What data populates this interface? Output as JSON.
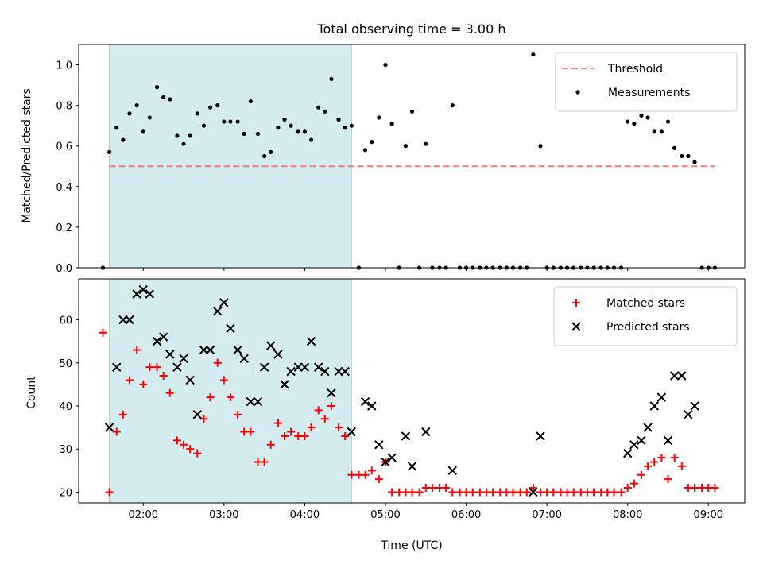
{
  "chart_data": [
    {
      "type": "scatter",
      "title": "Total observing time = 3.00 h",
      "ylabel": "Matched/Predicted stars",
      "xlabel": "",
      "ylim": [
        0,
        1.1
      ],
      "yticks": [
        "0.0",
        "0.2",
        "0.4",
        "0.6",
        "0.8",
        "1.0"
      ],
      "x_unit": "hours UTC",
      "xlim": [
        1.2,
        9.45
      ],
      "shaded_interval": [
        1.58,
        4.58
      ],
      "shade_color": "#d4ebf0",
      "legend_position": "top-right",
      "threshold": {
        "name": "Threshold",
        "y": 0.5,
        "x_start": 1.58,
        "x_end": 9.08,
        "color": "#f08080"
      },
      "series": [
        {
          "name": "Measurements",
          "color": "#000000",
          "points": [
            [
              1.5,
              0.0
            ],
            [
              1.58,
              0.57
            ],
            [
              1.67,
              0.69
            ],
            [
              1.75,
              0.63
            ],
            [
              1.83,
              0.76
            ],
            [
              1.92,
              0.8
            ],
            [
              2.0,
              0.67
            ],
            [
              2.08,
              0.74
            ],
            [
              2.17,
              0.89
            ],
            [
              2.25,
              0.84
            ],
            [
              2.33,
              0.83
            ],
            [
              2.42,
              0.65
            ],
            [
              2.5,
              0.61
            ],
            [
              2.58,
              0.65
            ],
            [
              2.67,
              0.76
            ],
            [
              2.75,
              0.7
            ],
            [
              2.83,
              0.79
            ],
            [
              2.92,
              0.8
            ],
            [
              3.0,
              0.72
            ],
            [
              3.08,
              0.72
            ],
            [
              3.17,
              0.72
            ],
            [
              3.25,
              0.66
            ],
            [
              3.33,
              0.82
            ],
            [
              3.42,
              0.66
            ],
            [
              3.5,
              0.55
            ],
            [
              3.58,
              0.57
            ],
            [
              3.67,
              0.69
            ],
            [
              3.75,
              0.73
            ],
            [
              3.83,
              0.7
            ],
            [
              3.92,
              0.67
            ],
            [
              4.0,
              0.67
            ],
            [
              4.08,
              0.63
            ],
            [
              4.17,
              0.79
            ],
            [
              4.25,
              0.77
            ],
            [
              4.33,
              0.93
            ],
            [
              4.42,
              0.73
            ],
            [
              4.5,
              0.69
            ],
            [
              4.58,
              0.7
            ],
            [
              4.67,
              0.0
            ],
            [
              4.75,
              0.58
            ],
            [
              4.83,
              0.62
            ],
            [
              4.92,
              0.74
            ],
            [
              5.0,
              1.0
            ],
            [
              5.08,
              0.71
            ],
            [
              5.17,
              0.0
            ],
            [
              5.25,
              0.6
            ],
            [
              5.33,
              0.77
            ],
            [
              5.42,
              0.0
            ],
            [
              5.5,
              0.61
            ],
            [
              5.58,
              0.0
            ],
            [
              5.67,
              0.0
            ],
            [
              5.75,
              0.0
            ],
            [
              5.83,
              0.8
            ],
            [
              5.92,
              0.0
            ],
            [
              6.0,
              0.0
            ],
            [
              6.08,
              0.0
            ],
            [
              6.17,
              0.0
            ],
            [
              6.25,
              0.0
            ],
            [
              6.33,
              0.0
            ],
            [
              6.42,
              0.0
            ],
            [
              6.5,
              0.0
            ],
            [
              6.58,
              0.0
            ],
            [
              6.67,
              0.0
            ],
            [
              6.75,
              0.0
            ],
            [
              6.83,
              1.05
            ],
            [
              6.92,
              0.6
            ],
            [
              7.0,
              0.0
            ],
            [
              7.08,
              0.0
            ],
            [
              7.17,
              0.0
            ],
            [
              7.25,
              0.0
            ],
            [
              7.33,
              0.0
            ],
            [
              7.42,
              0.0
            ],
            [
              7.5,
              0.0
            ],
            [
              7.58,
              0.0
            ],
            [
              7.67,
              0.0
            ],
            [
              7.75,
              0.0
            ],
            [
              7.83,
              0.0
            ],
            [
              7.92,
              0.0
            ],
            [
              8.0,
              0.72
            ],
            [
              8.08,
              0.71
            ],
            [
              8.17,
              0.75
            ],
            [
              8.25,
              0.74
            ],
            [
              8.33,
              0.67
            ],
            [
              8.42,
              0.67
            ],
            [
              8.5,
              0.72
            ],
            [
              8.58,
              0.59
            ],
            [
              8.67,
              0.55
            ],
            [
              8.75,
              0.55
            ],
            [
              8.83,
              0.52
            ],
            [
              8.92,
              0.0
            ],
            [
              9.0,
              0.0
            ],
            [
              9.08,
              0.0
            ]
          ]
        }
      ]
    },
    {
      "type": "scatter",
      "title": "",
      "xlabel": "Time (UTC)",
      "ylabel": "Count",
      "ylim": [
        17.5,
        69.5
      ],
      "yticks": [
        "20",
        "30",
        "40",
        "50",
        "60"
      ],
      "x_unit": "hours UTC",
      "xlim": [
        1.2,
        9.45
      ],
      "xticks": [
        "02:00",
        "03:00",
        "04:00",
        "05:00",
        "06:00",
        "07:00",
        "08:00",
        "09:00"
      ],
      "shaded_interval": [
        1.58,
        4.58
      ],
      "shade_color": "#d4ebf0",
      "legend_position": "top-right",
      "series": [
        {
          "name": "Matched stars",
          "color": "#ff0000",
          "marker": "plus",
          "points": [
            [
              1.5,
              57
            ],
            [
              1.58,
              20
            ],
            [
              1.67,
              34
            ],
            [
              1.75,
              38
            ],
            [
              1.83,
              46
            ],
            [
              1.92,
              53
            ],
            [
              2.0,
              45
            ],
            [
              2.08,
              49
            ],
            [
              2.17,
              49
            ],
            [
              2.25,
              47
            ],
            [
              2.33,
              43
            ],
            [
              2.42,
              32
            ],
            [
              2.5,
              31
            ],
            [
              2.58,
              30
            ],
            [
              2.67,
              29
            ],
            [
              2.75,
              37
            ],
            [
              2.83,
              42
            ],
            [
              2.92,
              50
            ],
            [
              3.0,
              46
            ],
            [
              3.08,
              42
            ],
            [
              3.17,
              38
            ],
            [
              3.25,
              34
            ],
            [
              3.33,
              34
            ],
            [
              3.42,
              27
            ],
            [
              3.5,
              27
            ],
            [
              3.58,
              31
            ],
            [
              3.67,
              36
            ],
            [
              3.75,
              33
            ],
            [
              3.83,
              34
            ],
            [
              3.92,
              33
            ],
            [
              4.0,
              33
            ],
            [
              4.08,
              35
            ],
            [
              4.17,
              39
            ],
            [
              4.25,
              37
            ],
            [
              4.33,
              40
            ],
            [
              4.42,
              35
            ],
            [
              4.5,
              33
            ],
            [
              4.58,
              24
            ],
            [
              4.67,
              24
            ],
            [
              4.75,
              24
            ],
            [
              4.83,
              25
            ],
            [
              4.92,
              23
            ],
            [
              5.0,
              27
            ],
            [
              5.08,
              20
            ],
            [
              5.17,
              20
            ],
            [
              5.25,
              20
            ],
            [
              5.33,
              20
            ],
            [
              5.42,
              20
            ],
            [
              5.5,
              21
            ],
            [
              5.58,
              21
            ],
            [
              5.67,
              21
            ],
            [
              5.75,
              21
            ],
            [
              5.83,
              20
            ],
            [
              5.92,
              20
            ],
            [
              6.0,
              20
            ],
            [
              6.08,
              20
            ],
            [
              6.17,
              20
            ],
            [
              6.25,
              20
            ],
            [
              6.33,
              20
            ],
            [
              6.42,
              20
            ],
            [
              6.5,
              20
            ],
            [
              6.58,
              20
            ],
            [
              6.67,
              20
            ],
            [
              6.75,
              20
            ],
            [
              6.83,
              21
            ],
            [
              6.92,
              20
            ],
            [
              7.0,
              20
            ],
            [
              7.08,
              20
            ],
            [
              7.17,
              20
            ],
            [
              7.25,
              20
            ],
            [
              7.33,
              20
            ],
            [
              7.42,
              20
            ],
            [
              7.5,
              20
            ],
            [
              7.58,
              20
            ],
            [
              7.67,
              20
            ],
            [
              7.75,
              20
            ],
            [
              7.83,
              20
            ],
            [
              7.92,
              20
            ],
            [
              8.0,
              21
            ],
            [
              8.08,
              22
            ],
            [
              8.17,
              24
            ],
            [
              8.25,
              26
            ],
            [
              8.33,
              27
            ],
            [
              8.42,
              28
            ],
            [
              8.5,
              23
            ],
            [
              8.58,
              28
            ],
            [
              8.67,
              26
            ],
            [
              8.75,
              21
            ],
            [
              8.83,
              21
            ],
            [
              8.92,
              21
            ],
            [
              9.0,
              21
            ],
            [
              9.08,
              21
            ]
          ]
        },
        {
          "name": "Predicted stars",
          "color": "#000000",
          "marker": "x",
          "points": [
            [
              1.58,
              35
            ],
            [
              1.67,
              49
            ],
            [
              1.75,
              60
            ],
            [
              1.83,
              60
            ],
            [
              1.92,
              66
            ],
            [
              2.0,
              67
            ],
            [
              2.08,
              66
            ],
            [
              2.17,
              55
            ],
            [
              2.25,
              56
            ],
            [
              2.33,
              52
            ],
            [
              2.42,
              49
            ],
            [
              2.5,
              51
            ],
            [
              2.58,
              46
            ],
            [
              2.67,
              38
            ],
            [
              2.75,
              53
            ],
            [
              2.83,
              53
            ],
            [
              2.92,
              62
            ],
            [
              3.0,
              64
            ],
            [
              3.08,
              58
            ],
            [
              3.17,
              53
            ],
            [
              3.25,
              51
            ],
            [
              3.33,
              41
            ],
            [
              3.42,
              41
            ],
            [
              3.5,
              49
            ],
            [
              3.58,
              54
            ],
            [
              3.67,
              52
            ],
            [
              3.75,
              45
            ],
            [
              3.83,
              48
            ],
            [
              3.92,
              49
            ],
            [
              4.0,
              49
            ],
            [
              4.08,
              55
            ],
            [
              4.17,
              49
            ],
            [
              4.25,
              48
            ],
            [
              4.33,
              43
            ],
            [
              4.42,
              48
            ],
            [
              4.5,
              48
            ],
            [
              4.58,
              34
            ],
            [
              4.75,
              41
            ],
            [
              4.83,
              40
            ],
            [
              4.92,
              31
            ],
            [
              5.0,
              27
            ],
            [
              5.08,
              28
            ],
            [
              5.25,
              33
            ],
            [
              5.33,
              26
            ],
            [
              5.5,
              34
            ],
            [
              5.83,
              25
            ],
            [
              6.83,
              20
            ],
            [
              6.92,
              33
            ],
            [
              8.0,
              29
            ],
            [
              8.08,
              31
            ],
            [
              8.17,
              32
            ],
            [
              8.25,
              35
            ],
            [
              8.33,
              40
            ],
            [
              8.42,
              42
            ],
            [
              8.5,
              32
            ],
            [
              8.58,
              47
            ],
            [
              8.67,
              47
            ],
            [
              8.75,
              38
            ],
            [
              8.83,
              40
            ]
          ]
        }
      ]
    }
  ]
}
